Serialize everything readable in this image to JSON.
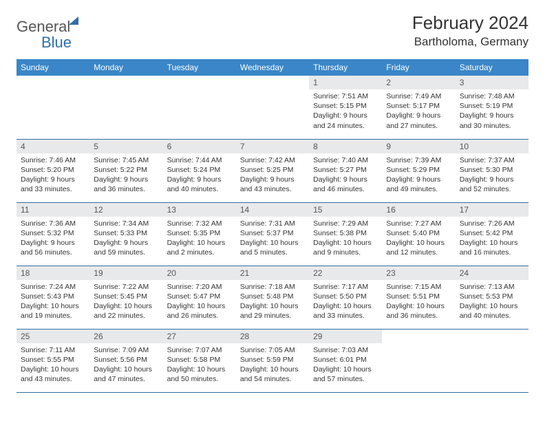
{
  "logo": {
    "word1": "General",
    "word2": "Blue"
  },
  "title": "February 2024",
  "location": "Bartholoma, Germany",
  "colors": {
    "header_bg": "#3a86c8",
    "header_text": "#ffffff",
    "daynum_bg": "#e8e9ea",
    "rule": "#2f6fa8",
    "logo_blue": "#2f6fa8",
    "text": "#333333"
  },
  "day_headers": [
    "Sunday",
    "Monday",
    "Tuesday",
    "Wednesday",
    "Thursday",
    "Friday",
    "Saturday"
  ],
  "weeks": [
    [
      {
        "n": "",
        "sr": "",
        "ss": "",
        "dl1": "",
        "dl2": ""
      },
      {
        "n": "",
        "sr": "",
        "ss": "",
        "dl1": "",
        "dl2": ""
      },
      {
        "n": "",
        "sr": "",
        "ss": "",
        "dl1": "",
        "dl2": ""
      },
      {
        "n": "",
        "sr": "",
        "ss": "",
        "dl1": "",
        "dl2": ""
      },
      {
        "n": "1",
        "sr": "Sunrise: 7:51 AM",
        "ss": "Sunset: 5:15 PM",
        "dl1": "Daylight: 9 hours",
        "dl2": "and 24 minutes."
      },
      {
        "n": "2",
        "sr": "Sunrise: 7:49 AM",
        "ss": "Sunset: 5:17 PM",
        "dl1": "Daylight: 9 hours",
        "dl2": "and 27 minutes."
      },
      {
        "n": "3",
        "sr": "Sunrise: 7:48 AM",
        "ss": "Sunset: 5:19 PM",
        "dl1": "Daylight: 9 hours",
        "dl2": "and 30 minutes."
      }
    ],
    [
      {
        "n": "4",
        "sr": "Sunrise: 7:46 AM",
        "ss": "Sunset: 5:20 PM",
        "dl1": "Daylight: 9 hours",
        "dl2": "and 33 minutes."
      },
      {
        "n": "5",
        "sr": "Sunrise: 7:45 AM",
        "ss": "Sunset: 5:22 PM",
        "dl1": "Daylight: 9 hours",
        "dl2": "and 36 minutes."
      },
      {
        "n": "6",
        "sr": "Sunrise: 7:44 AM",
        "ss": "Sunset: 5:24 PM",
        "dl1": "Daylight: 9 hours",
        "dl2": "and 40 minutes."
      },
      {
        "n": "7",
        "sr": "Sunrise: 7:42 AM",
        "ss": "Sunset: 5:25 PM",
        "dl1": "Daylight: 9 hours",
        "dl2": "and 43 minutes."
      },
      {
        "n": "8",
        "sr": "Sunrise: 7:40 AM",
        "ss": "Sunset: 5:27 PM",
        "dl1": "Daylight: 9 hours",
        "dl2": "and 46 minutes."
      },
      {
        "n": "9",
        "sr": "Sunrise: 7:39 AM",
        "ss": "Sunset: 5:29 PM",
        "dl1": "Daylight: 9 hours",
        "dl2": "and 49 minutes."
      },
      {
        "n": "10",
        "sr": "Sunrise: 7:37 AM",
        "ss": "Sunset: 5:30 PM",
        "dl1": "Daylight: 9 hours",
        "dl2": "and 52 minutes."
      }
    ],
    [
      {
        "n": "11",
        "sr": "Sunrise: 7:36 AM",
        "ss": "Sunset: 5:32 PM",
        "dl1": "Daylight: 9 hours",
        "dl2": "and 56 minutes."
      },
      {
        "n": "12",
        "sr": "Sunrise: 7:34 AM",
        "ss": "Sunset: 5:33 PM",
        "dl1": "Daylight: 9 hours",
        "dl2": "and 59 minutes."
      },
      {
        "n": "13",
        "sr": "Sunrise: 7:32 AM",
        "ss": "Sunset: 5:35 PM",
        "dl1": "Daylight: 10 hours",
        "dl2": "and 2 minutes."
      },
      {
        "n": "14",
        "sr": "Sunrise: 7:31 AM",
        "ss": "Sunset: 5:37 PM",
        "dl1": "Daylight: 10 hours",
        "dl2": "and 5 minutes."
      },
      {
        "n": "15",
        "sr": "Sunrise: 7:29 AM",
        "ss": "Sunset: 5:38 PM",
        "dl1": "Daylight: 10 hours",
        "dl2": "and 9 minutes."
      },
      {
        "n": "16",
        "sr": "Sunrise: 7:27 AM",
        "ss": "Sunset: 5:40 PM",
        "dl1": "Daylight: 10 hours",
        "dl2": "and 12 minutes."
      },
      {
        "n": "17",
        "sr": "Sunrise: 7:26 AM",
        "ss": "Sunset: 5:42 PM",
        "dl1": "Daylight: 10 hours",
        "dl2": "and 16 minutes."
      }
    ],
    [
      {
        "n": "18",
        "sr": "Sunrise: 7:24 AM",
        "ss": "Sunset: 5:43 PM",
        "dl1": "Daylight: 10 hours",
        "dl2": "and 19 minutes."
      },
      {
        "n": "19",
        "sr": "Sunrise: 7:22 AM",
        "ss": "Sunset: 5:45 PM",
        "dl1": "Daylight: 10 hours",
        "dl2": "and 22 minutes."
      },
      {
        "n": "20",
        "sr": "Sunrise: 7:20 AM",
        "ss": "Sunset: 5:47 PM",
        "dl1": "Daylight: 10 hours",
        "dl2": "and 26 minutes."
      },
      {
        "n": "21",
        "sr": "Sunrise: 7:18 AM",
        "ss": "Sunset: 5:48 PM",
        "dl1": "Daylight: 10 hours",
        "dl2": "and 29 minutes."
      },
      {
        "n": "22",
        "sr": "Sunrise: 7:17 AM",
        "ss": "Sunset: 5:50 PM",
        "dl1": "Daylight: 10 hours",
        "dl2": "and 33 minutes."
      },
      {
        "n": "23",
        "sr": "Sunrise: 7:15 AM",
        "ss": "Sunset: 5:51 PM",
        "dl1": "Daylight: 10 hours",
        "dl2": "and 36 minutes."
      },
      {
        "n": "24",
        "sr": "Sunrise: 7:13 AM",
        "ss": "Sunset: 5:53 PM",
        "dl1": "Daylight: 10 hours",
        "dl2": "and 40 minutes."
      }
    ],
    [
      {
        "n": "25",
        "sr": "Sunrise: 7:11 AM",
        "ss": "Sunset: 5:55 PM",
        "dl1": "Daylight: 10 hours",
        "dl2": "and 43 minutes."
      },
      {
        "n": "26",
        "sr": "Sunrise: 7:09 AM",
        "ss": "Sunset: 5:56 PM",
        "dl1": "Daylight: 10 hours",
        "dl2": "and 47 minutes."
      },
      {
        "n": "27",
        "sr": "Sunrise: 7:07 AM",
        "ss": "Sunset: 5:58 PM",
        "dl1": "Daylight: 10 hours",
        "dl2": "and 50 minutes."
      },
      {
        "n": "28",
        "sr": "Sunrise: 7:05 AM",
        "ss": "Sunset: 5:59 PM",
        "dl1": "Daylight: 10 hours",
        "dl2": "and 54 minutes."
      },
      {
        "n": "29",
        "sr": "Sunrise: 7:03 AM",
        "ss": "Sunset: 6:01 PM",
        "dl1": "Daylight: 10 hours",
        "dl2": "and 57 minutes."
      },
      {
        "n": "",
        "sr": "",
        "ss": "",
        "dl1": "",
        "dl2": ""
      },
      {
        "n": "",
        "sr": "",
        "ss": "",
        "dl1": "",
        "dl2": ""
      }
    ]
  ]
}
